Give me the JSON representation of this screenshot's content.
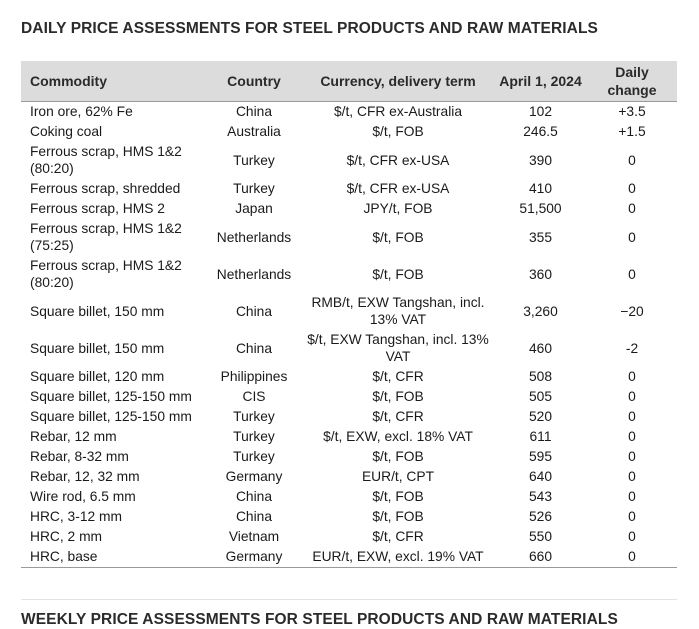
{
  "title": "DAILY PRICE ASSESSMENTS FOR STEEL PRODUCTS AND RAW MATERIALS",
  "table": {
    "headers": {
      "commodity": "Commodity",
      "country": "Country",
      "currency": "Currency, delivery term",
      "date": "April 1, 2024",
      "change": "Daily change"
    },
    "rows": [
      {
        "commodity": "Iron ore, 62% Fe",
        "country": "China",
        "currency": "$/t, CFR ex-Australia",
        "price": "102",
        "change": "+3.5"
      },
      {
        "commodity": "Coking coal",
        "country": "Australia",
        "currency": "$/t, FOB",
        "price": "246.5",
        "change": "+1.5"
      },
      {
        "commodity": "Ferrous scrap, HMS 1&2 (80:20)",
        "country": "Turkey",
        "currency": "$/t, CFR ex-USA",
        "price": "390",
        "change": "0"
      },
      {
        "commodity": "Ferrous scrap, shredded",
        "country": "Turkey",
        "currency": "$/t, CFR ex-USA",
        "price": "410",
        "change": "0"
      },
      {
        "commodity": "Ferrous scrap, HMS 2",
        "country": "Japan",
        "currency": "JPY/t, FOB",
        "price": "51,500",
        "change": "0"
      },
      {
        "commodity": "Ferrous scrap, HMS 1&2 (75:25)",
        "country": "Netherlands",
        "currency": "$/t, FOB",
        "price": "355",
        "change": "0"
      },
      {
        "commodity": "Ferrous scrap, HMS 1&2 (80:20)",
        "country": "Netherlands",
        "currency": "$/t, FOB",
        "price": "360",
        "change": "0"
      },
      {
        "commodity": "Square billet, 150 mm",
        "country": "China",
        "currency": "RMB/t, EXW Tangshan, incl. 13% VAT",
        "price": "3,260",
        "change": "−20"
      },
      {
        "commodity": "Square billet, 150 mm",
        "country": "China",
        "currency": "$/t, EXW Tangshan, incl. 13% VAT",
        "price": "460",
        "change": "-2"
      },
      {
        "commodity": "Square billet, 120 mm",
        "country": "Philippines",
        "currency": "$/t, CFR",
        "price": "508",
        "change": "0"
      },
      {
        "commodity": "Square billet, 125-150 mm",
        "country": "CIS",
        "currency": "$/t, FOB",
        "price": "505",
        "change": "0"
      },
      {
        "commodity": "Square billet, 125-150 mm",
        "country": "Turkey",
        "currency": "$/t, CFR",
        "price": "520",
        "change": "0"
      },
      {
        "commodity": "Rebar, 12 mm",
        "country": "Turkey",
        "currency": "$/t, EXW, excl. 18% VAT",
        "price": "611",
        "change": "0"
      },
      {
        "commodity": "Rebar, 8-32 mm",
        "country": "Turkey",
        "currency": "$/t, FOB",
        "price": "595",
        "change": "0"
      },
      {
        "commodity": "Rebar, 12, 32 mm",
        "country": "Germany",
        "currency": "EUR/t, CPT",
        "price": "640",
        "change": "0"
      },
      {
        "commodity": "Wire rod, 6.5 mm",
        "country": "China",
        "currency": "$/t, FOB",
        "price": "543",
        "change": "0"
      },
      {
        "commodity": "HRC, 3-12 mm",
        "country": "China",
        "currency": "$/t, FOB",
        "price": "526",
        "change": "0"
      },
      {
        "commodity": "HRC, 2 mm",
        "country": "Vietnam",
        "currency": "$/t, CFR",
        "price": "550",
        "change": "0"
      },
      {
        "commodity": "HRC, base",
        "country": "Germany",
        "currency": "EUR/t, EXW, excl. 19% VAT",
        "price": "660",
        "change": "0"
      }
    ]
  },
  "footer_heading": "WEEKLY PRICE ASSESSMENTS FOR STEEL PRODUCTS AND RAW MATERIALS"
}
